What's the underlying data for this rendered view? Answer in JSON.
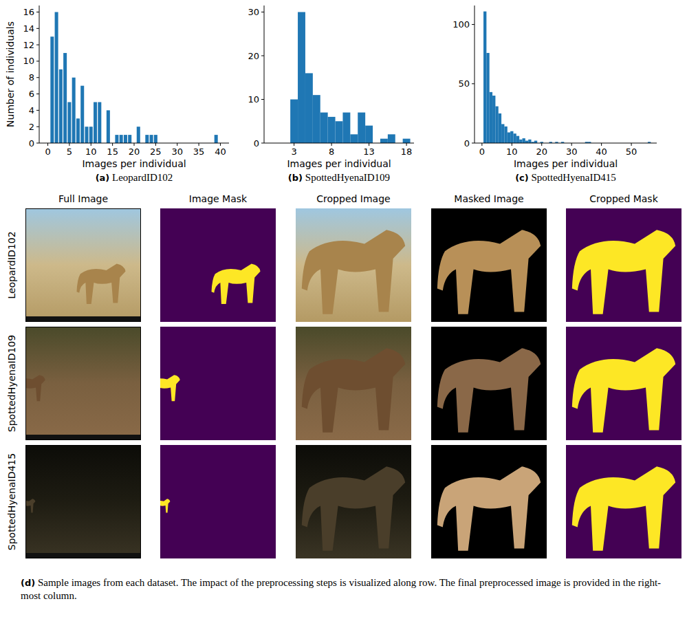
{
  "chart_data": [
    {
      "type": "histogram",
      "title": "(a) LeopardID102",
      "x_label": "Images per individual",
      "y_label": "Number of individuals",
      "color": "#1f77b4",
      "bins": [
        0.5,
        1.5,
        2.5,
        3.5,
        4.5,
        5.5,
        6.5,
        7.5,
        8.5,
        9.5,
        10.5,
        11.5,
        12.5,
        13.5,
        14.5,
        15.5,
        16.5,
        17.5,
        18.5,
        19.5,
        20.5,
        21.5,
        22.5,
        23.5,
        24.5,
        25.5,
        26.5,
        27.5,
        28.5,
        29.5,
        30.5,
        31.5,
        32.5,
        33.5,
        34.5,
        35.5,
        36.5,
        37.5,
        38.5,
        39.5
      ],
      "values": [
        13,
        16,
        9,
        11,
        5,
        8,
        3,
        7,
        2,
        2,
        5,
        5,
        0,
        4,
        0,
        1,
        1,
        1,
        1,
        0,
        2,
        0,
        1,
        1,
        1,
        0,
        0,
        0,
        0,
        0,
        0,
        0,
        0,
        0,
        0,
        0,
        0,
        0,
        1
      ],
      "xlim": [
        -2,
        42
      ],
      "ylim": [
        0,
        16.8
      ],
      "xticks": [
        0,
        5,
        10,
        15,
        20,
        25,
        30,
        35,
        40
      ],
      "yticks": [
        0,
        2,
        4,
        6,
        8,
        10,
        12,
        14,
        16
      ]
    },
    {
      "type": "histogram",
      "title": "(b) SpottedHyenaID109",
      "x_label": "Images per individual",
      "color": "#1f77b4",
      "bins": [
        2.5,
        3.5,
        4.5,
        5.5,
        6.5,
        7.5,
        8.5,
        9.5,
        10.5,
        11.5,
        12.5,
        13.5,
        14.5,
        15.5,
        16.5,
        17.5,
        18.5
      ],
      "values": [
        10,
        30,
        16,
        11,
        7,
        6,
        5,
        7,
        2,
        7,
        4,
        0,
        1,
        2,
        0,
        1
      ],
      "xlim": [
        -1,
        19
      ],
      "ylim": [
        0,
        31.5
      ],
      "xticks": [
        3,
        8,
        13,
        18
      ],
      "yticks": [
        0,
        10,
        20,
        30
      ]
    },
    {
      "type": "histogram",
      "title": "(c) SpottedHyenaID415",
      "x_label": "Images per individual",
      "color": "#1f77b4",
      "bins": [
        0.5,
        1.5,
        2.5,
        3.5,
        4.5,
        5.5,
        6.5,
        7.5,
        8.5,
        9.5,
        10.5,
        11.5,
        12.5,
        13.5,
        14.5,
        15.5,
        16.5,
        17.5,
        18.5,
        19.5,
        20.5,
        21.5,
        22.5,
        23.5,
        24.5,
        25.5,
        26.5,
        27.5,
        28.5,
        29.5,
        30.5,
        31.5,
        32.5,
        33.5,
        34.5,
        35.5,
        36.5,
        37.5,
        38.5,
        39.5,
        40.5,
        41.5,
        42.5,
        43.5,
        44.5,
        45.5,
        46.5,
        47.5,
        48.5,
        49.5,
        50.5,
        51.5,
        52.5,
        53.5,
        54.5,
        55.5,
        56.5
      ],
      "values": [
        111,
        76,
        43,
        40,
        31,
        25,
        16,
        14,
        9,
        10,
        8,
        6,
        3,
        4,
        2,
        3,
        1,
        2,
        0,
        1,
        0,
        0,
        1,
        0,
        1,
        0,
        1,
        0,
        0,
        0,
        0,
        0,
        0,
        0,
        1,
        1,
        0,
        0,
        0,
        0,
        0,
        0,
        0,
        0,
        0,
        0,
        0,
        0,
        0,
        0,
        0,
        0,
        0,
        0,
        0,
        1
      ],
      "xlim": [
        -2.5,
        58.5
      ],
      "ylim": [
        0,
        116
      ],
      "xticks": [
        0,
        10,
        20,
        30,
        40,
        50
      ],
      "yticks": [
        0,
        50,
        100
      ]
    }
  ],
  "image_grid": {
    "columns": [
      "Full Image",
      "Image Mask",
      "Cropped Image",
      "Masked Image",
      "Cropped Mask"
    ],
    "rows": [
      "LeopardID102",
      "SpottedHyenaID109",
      "SpottedHyenaID415"
    ]
  },
  "caption": "(d) Sample images from each dataset. The impact of the preprocessing steps is visualized along row. The final preprocessed image is provided in the right-most column."
}
